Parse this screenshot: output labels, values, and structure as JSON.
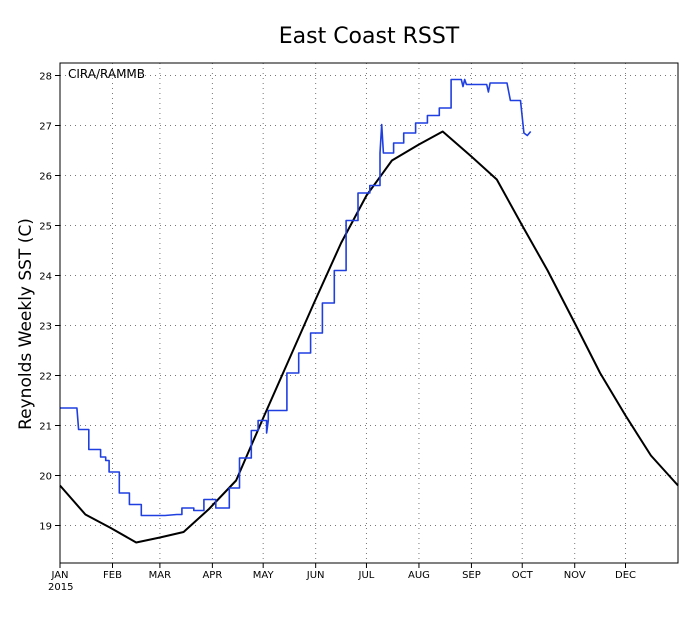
{
  "chart_data": {
    "type": "line",
    "title": "East Coast RSST",
    "ylabel": "Reynolds Weekly SST (C)",
    "xlabel": "",
    "annotation": "CIRA/RAMMB",
    "year_label": "2015",
    "x_unit": "day of year 2015",
    "xlim": [
      1,
      366
    ],
    "ylim": [
      18.25,
      28.25
    ],
    "grid": true,
    "x_ticks": [
      {
        "label": "JAN",
        "x": 1
      },
      {
        "label": "FEB",
        "x": 32
      },
      {
        "label": "MAR",
        "x": 60
      },
      {
        "label": "APR",
        "x": 91
      },
      {
        "label": "MAY",
        "x": 121
      },
      {
        "label": "JUN",
        "x": 152
      },
      {
        "label": "JUL",
        "x": 182
      },
      {
        "label": "AUG",
        "x": 213
      },
      {
        "label": "SEP",
        "x": 244
      },
      {
        "label": "OCT",
        "x": 274
      },
      {
        "label": "NOV",
        "x": 305
      },
      {
        "label": "DEC",
        "x": 335
      }
    ],
    "y_ticks": [
      "19",
      "20",
      "21",
      "22",
      "23",
      "24",
      "25",
      "26",
      "27",
      "28"
    ],
    "series": [
      {
        "name": "",
        "color": "#000000",
        "style": "line",
        "points": [
          [
            1,
            19.8
          ],
          [
            16,
            19.22
          ],
          [
            31,
            18.95
          ],
          [
            46,
            18.66
          ],
          [
            60,
            18.76
          ],
          [
            74,
            18.87
          ],
          [
            89,
            19.33
          ],
          [
            105,
            19.9
          ],
          [
            121,
            21.15
          ],
          [
            136,
            22.3
          ],
          [
            151,
            23.45
          ],
          [
            167,
            24.65
          ],
          [
            182,
            25.6
          ],
          [
            197,
            26.3
          ],
          [
            213,
            26.62
          ],
          [
            227,
            26.88
          ],
          [
            244,
            26.38
          ],
          [
            259,
            25.92
          ],
          [
            274,
            25.0
          ],
          [
            289,
            24.1
          ],
          [
            305,
            23.05
          ],
          [
            320,
            22.05
          ],
          [
            335,
            21.2
          ],
          [
            350,
            20.4
          ],
          [
            366,
            19.8
          ]
        ]
      },
      {
        "name": "",
        "color": "#1f3fe0",
        "style": "step",
        "points": [
          [
            1,
            21.35
          ],
          [
            11,
            21.35
          ],
          [
            12,
            20.92
          ],
          [
            18,
            20.92
          ],
          [
            18,
            20.52
          ],
          [
            25,
            20.52
          ],
          [
            25,
            20.37
          ],
          [
            28,
            20.37
          ],
          [
            28,
            20.3
          ],
          [
            30,
            20.3
          ],
          [
            30,
            20.07
          ],
          [
            36,
            20.07
          ],
          [
            36,
            19.65
          ],
          [
            42,
            19.65
          ],
          [
            42,
            19.42
          ],
          [
            49,
            19.42
          ],
          [
            49,
            19.2
          ],
          [
            63,
            19.2
          ],
          [
            70,
            19.22
          ],
          [
            73,
            19.22
          ],
          [
            73,
            19.35
          ],
          [
            80,
            19.35
          ],
          [
            80,
            19.3
          ],
          [
            86,
            19.3
          ],
          [
            86,
            19.52
          ],
          [
            93,
            19.52
          ],
          [
            93,
            19.35
          ],
          [
            101,
            19.35
          ],
          [
            101,
            19.75
          ],
          [
            107,
            19.75
          ],
          [
            107,
            20.35
          ],
          [
            114,
            20.35
          ],
          [
            114,
            20.9
          ],
          [
            118,
            20.9
          ],
          [
            118,
            21.1
          ],
          [
            123,
            21.1
          ],
          [
            123,
            20.85
          ],
          [
            124,
            21.1
          ],
          [
            124,
            21.3
          ],
          [
            135,
            21.3
          ],
          [
            135,
            22.05
          ],
          [
            142,
            22.05
          ],
          [
            142,
            22.45
          ],
          [
            149,
            22.45
          ],
          [
            149,
            22.85
          ],
          [
            156,
            22.85
          ],
          [
            156,
            23.45
          ],
          [
            163,
            23.45
          ],
          [
            163,
            24.1
          ],
          [
            170,
            24.1
          ],
          [
            170,
            25.1
          ],
          [
            177,
            25.1
          ],
          [
            177,
            25.65
          ],
          [
            184,
            25.65
          ],
          [
            184,
            25.8
          ],
          [
            190,
            25.8
          ],
          [
            190,
            26.45
          ],
          [
            191,
            27.02
          ],
          [
            192,
            26.45
          ],
          [
            198,
            26.45
          ],
          [
            198,
            26.65
          ],
          [
            204,
            26.65
          ],
          [
            204,
            26.85
          ],
          [
            211,
            26.85
          ],
          [
            211,
            27.05
          ],
          [
            218,
            27.05
          ],
          [
            218,
            27.2
          ],
          [
            225,
            27.2
          ],
          [
            225,
            27.35
          ],
          [
            232,
            27.35
          ],
          [
            232,
            27.92
          ],
          [
            238,
            27.92
          ],
          [
            239,
            27.78
          ],
          [
            240,
            27.92
          ],
          [
            241,
            27.82
          ],
          [
            253,
            27.82
          ],
          [
            254,
            27.67
          ],
          [
            255,
            27.85
          ],
          [
            265,
            27.85
          ],
          [
            267,
            27.5
          ],
          [
            273,
            27.5
          ],
          [
            275,
            26.85
          ],
          [
            277,
            26.8
          ],
          [
            279,
            26.88
          ]
        ]
      }
    ]
  }
}
